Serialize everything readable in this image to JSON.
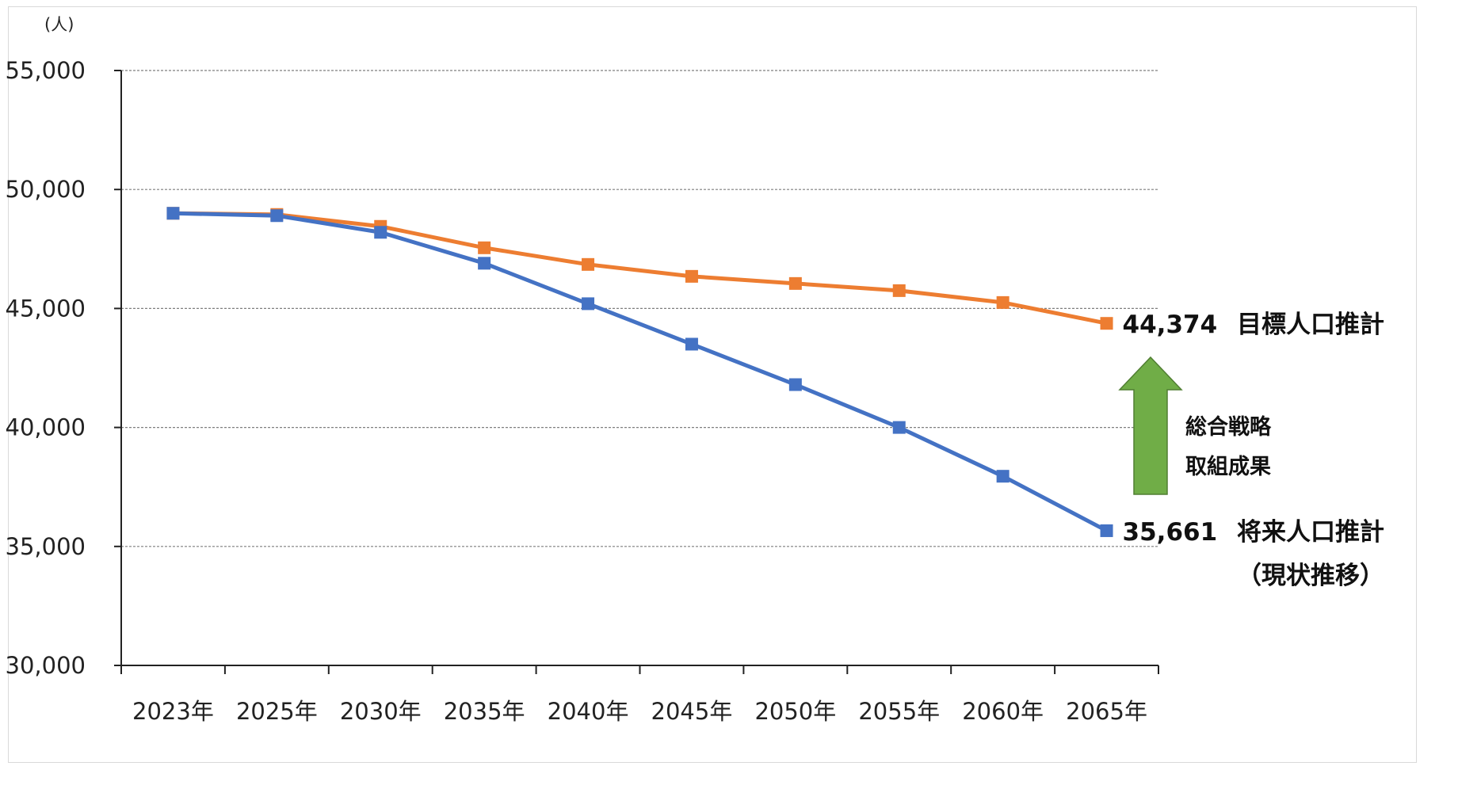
{
  "chart_data": {
    "type": "line",
    "unit_label": "(人)",
    "categories": [
      "2023年",
      "2025年",
      "2030年",
      "2035年",
      "2040年",
      "2045年",
      "2050年",
      "2055年",
      "2060年",
      "2065年"
    ],
    "ylim": [
      30000,
      55000
    ],
    "yticks": [
      30000,
      35000,
      40000,
      45000,
      50000,
      55000
    ],
    "ytick_labels": [
      "30,000",
      "35,000",
      "40,000",
      "45,000",
      "50,000",
      "55,000"
    ],
    "grid": true,
    "series": [
      {
        "key": "target",
        "color": "#ED7D31",
        "values": [
          49000,
          48950,
          48450,
          47550,
          46850,
          46350,
          46050,
          45750,
          45250,
          44374
        ],
        "end_label": "44,374",
        "name_lines": [
          "目標人口推計"
        ]
      },
      {
        "key": "baseline",
        "color": "#4472C4",
        "values": [
          49000,
          48900,
          48200,
          46900,
          45200,
          43500,
          41800,
          40000,
          37950,
          35661
        ],
        "end_label": "35,661",
        "name_lines": [
          "将来人口推計",
          "（現状推移）"
        ]
      }
    ],
    "annotation": {
      "lines": [
        "総合戦略",
        "取組成果"
      ],
      "arrow_color": "#70AD47",
      "arrow_edge_color": "#507E32"
    }
  }
}
